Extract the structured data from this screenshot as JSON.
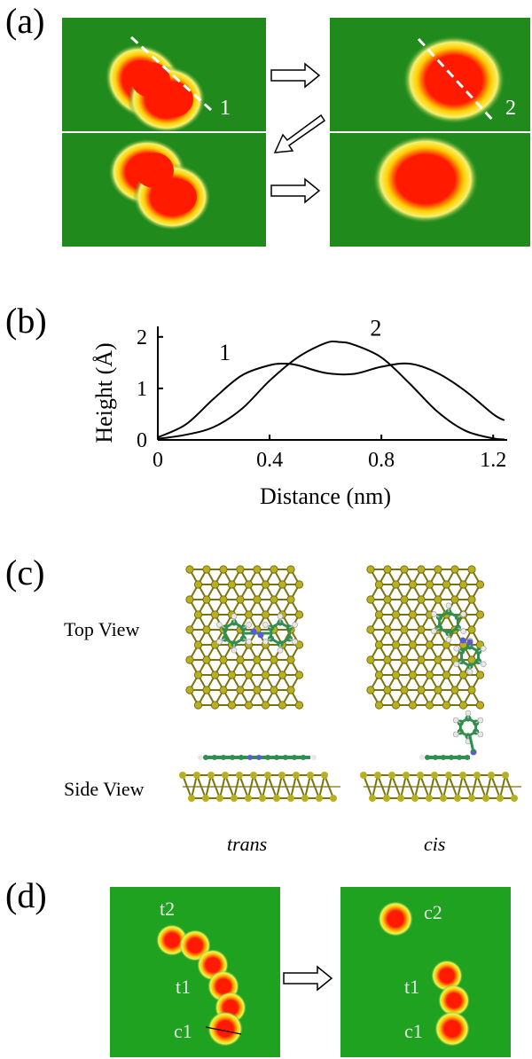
{
  "panels": {
    "a": {
      "label": "(a)",
      "profile_labels": [
        "1",
        "2"
      ]
    },
    "b": {
      "label": "(b)",
      "curve_labels": [
        "1",
        "2"
      ]
    },
    "c": {
      "label": "(c)",
      "row_labels": [
        "Top View",
        "Side View"
      ],
      "column_labels": [
        "trans",
        "cis"
      ]
    },
    "d": {
      "label": "(d)",
      "left_labels": [
        "t2",
        "t1",
        "c1"
      ],
      "right_labels": [
        "c2",
        "t1",
        "c1"
      ]
    }
  },
  "chart_data": {
    "type": "line",
    "xlabel": "Distance (nm)",
    "ylabel": "Height (Å)",
    "xlim": [
      0,
      1.25
    ],
    "ylim": [
      0,
      2.1
    ],
    "x_ticks": [
      "0",
      "0.4",
      "0.8",
      "1.2"
    ],
    "y_ticks": [
      "0",
      "1",
      "2"
    ],
    "series": [
      {
        "name": "1",
        "x": [
          0,
          0.1,
          0.2,
          0.3,
          0.4,
          0.45,
          0.5,
          0.6,
          0.7,
          0.8,
          0.9,
          1.0,
          1.1,
          1.2,
          1.24
        ],
        "y": [
          0.05,
          0.3,
          0.8,
          1.25,
          1.45,
          1.48,
          1.45,
          1.3,
          1.28,
          1.42,
          1.48,
          1.3,
          0.95,
          0.5,
          0.38
        ]
      },
      {
        "name": "2",
        "x": [
          0,
          0.1,
          0.2,
          0.3,
          0.4,
          0.5,
          0.6,
          0.65,
          0.7,
          0.8,
          0.9,
          1.0,
          1.1,
          1.2,
          1.24
        ],
        "y": [
          0.02,
          0.1,
          0.25,
          0.6,
          1.15,
          1.6,
          1.88,
          1.9,
          1.85,
          1.6,
          1.1,
          0.55,
          0.18,
          0.03,
          0.01
        ]
      }
    ]
  },
  "colors": {
    "substrate": "#1e8a1e",
    "blob_core": "#ff1a00",
    "atom": "#b8b020",
    "carbon": "#2f8f4f",
    "nitrogen": "#5a5ad8"
  }
}
